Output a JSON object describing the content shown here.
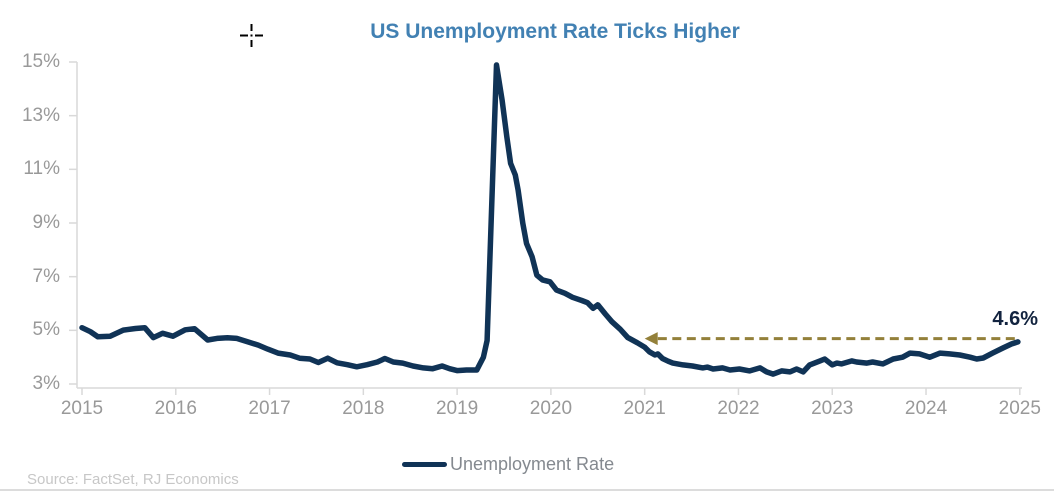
{
  "title": "US Unemployment Rate Ticks Higher",
  "source_note": "Source: FactSet, RJ Economics",
  "legend": {
    "items": [
      {
        "label": "Unemployment Rate",
        "color": "#103356"
      }
    ]
  },
  "annotation": {
    "label": "4.6%",
    "value": 4.6
  },
  "icons": {
    "cursor": "precision-crosshair-cursor"
  },
  "colors": {
    "line": "#103356",
    "title": "#4281b3",
    "axis_labels": "#999999",
    "axis_lines": "#d9d9d9",
    "annotation_arrow": "#93803a",
    "annotation_text": "#12233f",
    "legend_text": "#84898f",
    "source_text": "#c7c7c7",
    "divider": "#dcdcdc"
  },
  "chart_data": {
    "type": "line",
    "title": "US Unemployment Rate Ticks Higher",
    "xlabel": "",
    "ylabel": "",
    "grid": false,
    "legend_position": "bottom",
    "xlim": [
      2015,
      2025
    ],
    "ylim": [
      3,
      15
    ],
    "x_tick_values": [
      2015,
      2016,
      2017,
      2018,
      2019,
      2020,
      2021,
      2022,
      2023,
      2024,
      2025
    ],
    "x_tick_labels": [
      "2015",
      "2016",
      "2017",
      "2018",
      "2019",
      "2020",
      "2021",
      "2022",
      "2023",
      "2024",
      "2025"
    ],
    "y_tick_values": [
      15,
      13,
      11,
      9,
      7,
      5,
      3
    ],
    "y_tick_labels": [
      "15%",
      "13%",
      "11%",
      "9%",
      "7%",
      "5%",
      "3%"
    ],
    "annotation": {
      "label": "4.6%",
      "value": 4.6,
      "arrow_direction": "left",
      "arrow_tip_year": 2021.0,
      "line_from_year": 2021.14,
      "line_to_year": 2024.96
    },
    "series": [
      {
        "name": "Unemployment Rate",
        "color": "#103356",
        "points": [
          [
            2015.0,
            5.1
          ],
          [
            2015.09,
            4.95
          ],
          [
            2015.17,
            4.76
          ],
          [
            2015.3,
            4.78
          ],
          [
            2015.44,
            5.01
          ],
          [
            2015.57,
            5.07
          ],
          [
            2015.67,
            5.1
          ],
          [
            2015.76,
            4.73
          ],
          [
            2015.86,
            4.89
          ],
          [
            2015.97,
            4.78
          ],
          [
            2016.1,
            5.02
          ],
          [
            2016.2,
            5.06
          ],
          [
            2016.34,
            4.64
          ],
          [
            2016.44,
            4.7
          ],
          [
            2016.55,
            4.72
          ],
          [
            2016.65,
            4.7
          ],
          [
            2016.76,
            4.58
          ],
          [
            2016.88,
            4.45
          ],
          [
            2016.98,
            4.3
          ],
          [
            2017.09,
            4.15
          ],
          [
            2017.22,
            4.08
          ],
          [
            2017.32,
            3.96
          ],
          [
            2017.43,
            3.93
          ],
          [
            2017.52,
            3.8
          ],
          [
            2017.62,
            3.96
          ],
          [
            2017.72,
            3.79
          ],
          [
            2017.83,
            3.72
          ],
          [
            2017.93,
            3.64
          ],
          [
            2018.04,
            3.72
          ],
          [
            2018.15,
            3.82
          ],
          [
            2018.23,
            3.95
          ],
          [
            2018.32,
            3.82
          ],
          [
            2018.42,
            3.78
          ],
          [
            2018.53,
            3.67
          ],
          [
            2018.64,
            3.6
          ],
          [
            2018.74,
            3.57
          ],
          [
            2018.84,
            3.67
          ],
          [
            2018.92,
            3.57
          ],
          [
            2019.0,
            3.5
          ],
          [
            2019.1,
            3.52
          ],
          [
            2019.21,
            3.52
          ],
          [
            2019.28,
            4.0
          ],
          [
            2019.32,
            4.62
          ],
          [
            2019.42,
            14.89
          ],
          [
            2019.48,
            13.58
          ],
          [
            2019.53,
            12.22
          ],
          [
            2019.57,
            11.22
          ],
          [
            2019.62,
            10.79
          ],
          [
            2019.65,
            10.23
          ],
          [
            2019.7,
            8.99
          ],
          [
            2019.74,
            8.24
          ],
          [
            2019.8,
            7.74
          ],
          [
            2019.85,
            7.06
          ],
          [
            2019.91,
            6.88
          ],
          [
            2019.99,
            6.81
          ],
          [
            2020.06,
            6.5
          ],
          [
            2020.15,
            6.38
          ],
          [
            2020.23,
            6.23
          ],
          [
            2020.33,
            6.11
          ],
          [
            2020.39,
            6.03
          ],
          [
            2020.45,
            5.82
          ],
          [
            2020.5,
            5.95
          ],
          [
            2020.58,
            5.61
          ],
          [
            2020.65,
            5.32
          ],
          [
            2020.74,
            5.04
          ],
          [
            2020.82,
            4.73
          ],
          [
            2020.92,
            4.54
          ],
          [
            2021.0,
            4.37
          ],
          [
            2021.05,
            4.2
          ],
          [
            2021.11,
            4.08
          ],
          [
            2021.14,
            4.12
          ],
          [
            2021.19,
            3.95
          ],
          [
            2021.25,
            3.85
          ],
          [
            2021.3,
            3.78
          ],
          [
            2021.41,
            3.71
          ],
          [
            2021.51,
            3.67
          ],
          [
            2021.62,
            3.6
          ],
          [
            2021.67,
            3.63
          ],
          [
            2021.73,
            3.56
          ],
          [
            2021.83,
            3.6
          ],
          [
            2021.91,
            3.52
          ],
          [
            2022.01,
            3.56
          ],
          [
            2022.12,
            3.49
          ],
          [
            2022.23,
            3.6
          ],
          [
            2022.3,
            3.45
          ],
          [
            2022.37,
            3.37
          ],
          [
            2022.46,
            3.49
          ],
          [
            2022.55,
            3.45
          ],
          [
            2022.62,
            3.56
          ],
          [
            2022.69,
            3.45
          ],
          [
            2022.76,
            3.71
          ],
          [
            2022.87,
            3.86
          ],
          [
            2022.92,
            3.93
          ],
          [
            2023.0,
            3.71
          ],
          [
            2023.05,
            3.78
          ],
          [
            2023.1,
            3.75
          ],
          [
            2023.21,
            3.86
          ],
          [
            2023.26,
            3.82
          ],
          [
            2023.37,
            3.78
          ],
          [
            2023.43,
            3.82
          ],
          [
            2023.54,
            3.75
          ],
          [
            2023.65,
            3.93
          ],
          [
            2023.75,
            4.0
          ],
          [
            2023.83,
            4.15
          ],
          [
            2023.93,
            4.12
          ],
          [
            2024.04,
            4.0
          ],
          [
            2024.15,
            4.15
          ],
          [
            2024.25,
            4.12
          ],
          [
            2024.36,
            4.08
          ],
          [
            2024.47,
            4.0
          ],
          [
            2024.54,
            3.93
          ],
          [
            2024.61,
            3.97
          ],
          [
            2024.71,
            4.15
          ],
          [
            2024.82,
            4.34
          ],
          [
            2024.91,
            4.49
          ],
          [
            2024.98,
            4.57
          ]
        ]
      }
    ]
  }
}
